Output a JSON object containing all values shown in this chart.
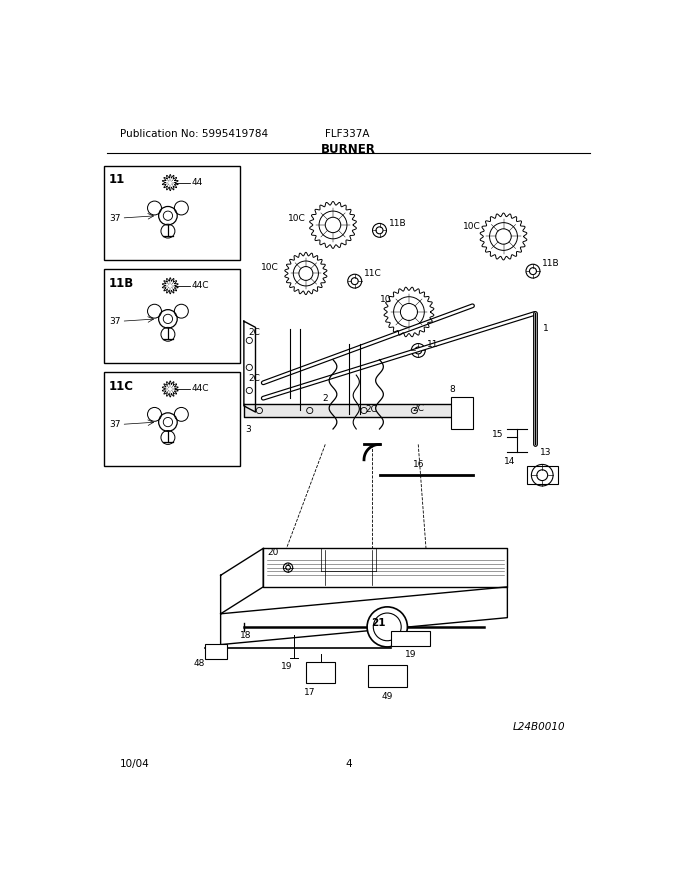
{
  "title": "BURNER",
  "pub_no": "Publication No: 5995419784",
  "model": "FLF337A",
  "date": "10/04",
  "page": "4",
  "doc_code": "L24B0010",
  "bg_color": "#ffffff",
  "line_color": "#000000",
  "fig_width": 6.8,
  "fig_height": 8.8,
  "dpi": 100,
  "box1_label": "11",
  "box2_label": "11B",
  "box3_label": "11C",
  "box1_part": "44",
  "box2_part": "44C",
  "box3_part": "44C",
  "shared_part": "37"
}
